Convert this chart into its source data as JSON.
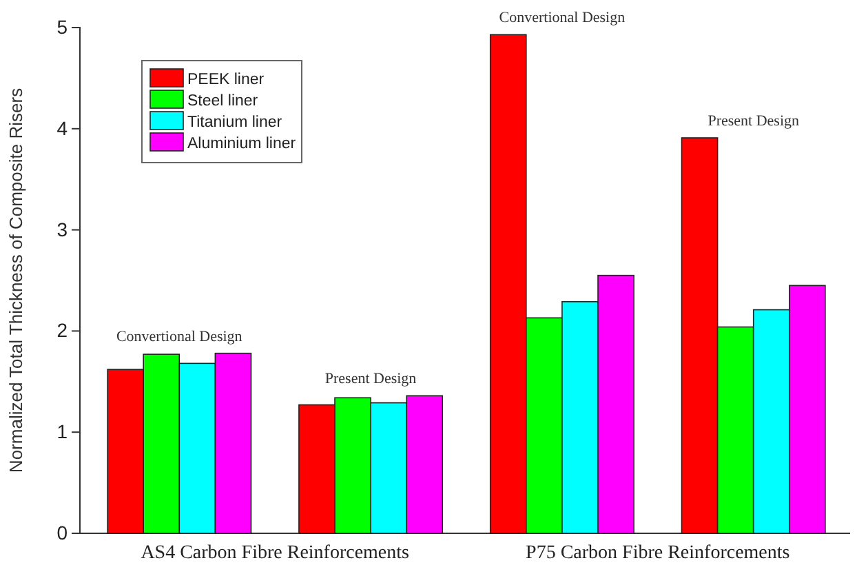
{
  "chart_data": {
    "type": "bar",
    "ylabel": "Normalized Total Thickness of Composite Risers",
    "categories": [
      "Convertional Design",
      "Present Design",
      "Convertional Design",
      "Present Design"
    ],
    "series": [
      {
        "name": "PEEK liner",
        "color": "#ff0000",
        "values": [
          1.62,
          1.27,
          4.93,
          3.91
        ]
      },
      {
        "name": "Steel liner",
        "color": "#00ff00",
        "values": [
          1.77,
          1.34,
          2.13,
          2.04
        ]
      },
      {
        "name": "Titanium liner",
        "color": "#00ffff",
        "values": [
          1.68,
          1.29,
          2.29,
          2.21
        ]
      },
      {
        "name": "Aluminium liner",
        "color": "#ff00ff",
        "values": [
          1.78,
          1.36,
          2.55,
          2.45
        ]
      }
    ],
    "annotations": [
      "AS4 Carbon Fibre Reinforcements",
      "P75 Carbon Fibre Reinforcements"
    ],
    "ylim": [
      0,
      5
    ],
    "yticks": [
      0,
      1,
      2,
      3,
      4,
      5
    ],
    "legend": "top left"
  }
}
